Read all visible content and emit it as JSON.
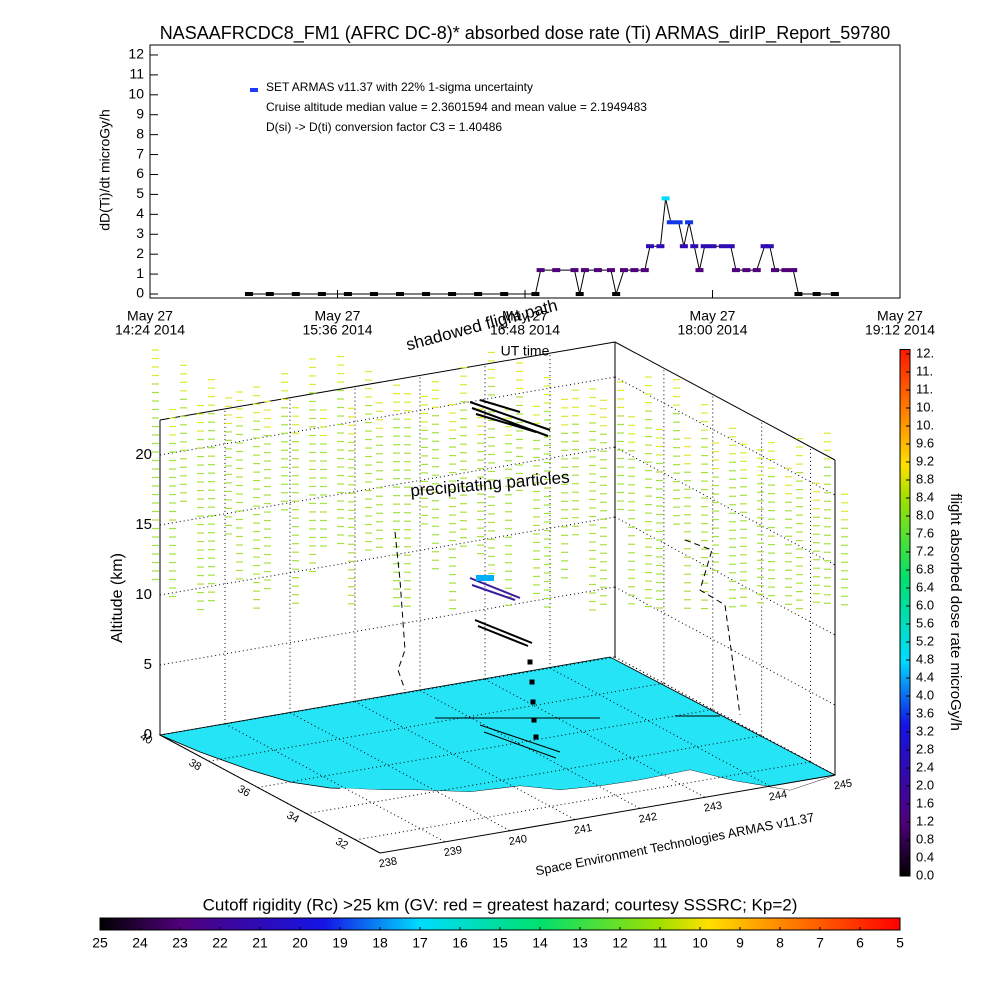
{
  "chart_data": [
    {
      "type": "line",
      "title": "NASAAFRCDC8_FM1 (AFRC DC-8)* absorbed dose rate (Ti) ARMAS_dirIP_Report_59780",
      "y_label": "dD(Ti)/dt microGy/h",
      "x_label": "UT time",
      "annotations": [
        "Cruise altitude median value = 2.3601594 and mean value = 2.1949483",
        "D(si) -> D(ti) conversion factor C3 = 1.40486"
      ],
      "x": [
        "2014-05-27 15:02",
        "2014-05-27 15:10",
        "2014-05-27 15:20",
        "2014-05-27 15:30",
        "2014-05-27 15:40",
        "2014-05-27 15:50",
        "2014-05-27 16:00",
        "2014-05-27 16:10",
        "2014-05-27 16:20",
        "2014-05-27 16:30",
        "2014-05-27 16:40",
        "2014-05-27 16:52",
        "2014-05-27 16:54",
        "2014-05-27 17:00",
        "2014-05-27 17:07",
        "2014-05-27 17:09",
        "2014-05-27 17:11",
        "2014-05-27 17:16",
        "2014-05-27 17:21",
        "2014-05-27 17:23",
        "2014-05-27 17:26",
        "2014-05-27 17:30",
        "2014-05-27 17:34",
        "2014-05-27 17:36",
        "2014-05-27 17:40",
        "2014-05-27 17:42",
        "2014-05-27 17:44",
        "2014-05-27 17:47",
        "2014-05-27 17:49",
        "2014-05-27 17:51",
        "2014-05-27 17:53",
        "2014-05-27 17:55",
        "2014-05-27 17:57",
        "2014-05-27 18:00",
        "2014-05-27 18:04",
        "2014-05-27 18:07",
        "2014-05-27 18:09",
        "2014-05-27 18:13",
        "2014-05-27 18:17",
        "2014-05-27 18:20",
        "2014-05-27 18:22",
        "2014-05-27 18:24",
        "2014-05-27 18:28",
        "2014-05-27 18:31",
        "2014-05-27 18:33",
        "2014-05-27 18:40",
        "2014-05-27 18:47"
      ],
      "series": [
        {
          "name": "SET ARMAS v11.37 with 22% 1-sigma uncertainty",
          "color": "#1a3cff",
          "values": [
            0,
            0,
            0,
            0,
            0,
            0,
            0,
            0,
            0,
            0,
            0,
            0,
            1.2,
            1.2,
            1.2,
            0,
            1.2,
            1.2,
            1.2,
            0,
            1.2,
            1.2,
            1.2,
            2.4,
            2.4,
            4.8,
            3.6,
            3.6,
            2.4,
            3.6,
            2.4,
            1.2,
            2.4,
            2.4,
            2.4,
            2.4,
            1.2,
            1.2,
            1.2,
            2.4,
            2.4,
            1.2,
            1.2,
            1.2,
            0,
            0,
            0
          ]
        }
      ],
      "xlim": [
        "2014-05-27 14:24",
        "2014-05-27 19:12"
      ],
      "xticks": [
        {
          "value": "2014-05-27 14:24",
          "label": [
            "May 27",
            "14:24 2014"
          ]
        },
        {
          "value": "2014-05-27 15:36",
          "label": [
            "May 27",
            "15:36 2014"
          ]
        },
        {
          "value": "2014-05-27 16:48",
          "label": [
            "May 27",
            "16:48 2014"
          ]
        },
        {
          "value": "2014-05-27 18:00",
          "label": [
            "May 27",
            "18:00 2014"
          ]
        },
        {
          "value": "2014-05-27 19:12",
          "label": [
            "May 27",
            "19:12 2014"
          ]
        }
      ],
      "ylim": [
        -0.2,
        12.5
      ],
      "yticks": [
        0,
        1,
        2,
        3,
        4,
        5,
        6,
        7,
        8,
        9,
        10,
        11,
        12
      ]
    },
    {
      "type": "surface3d",
      "z_label": "Altitude (km)",
      "annotations": [
        "precipitating particles",
        "shadowed flight path",
        "Space Environment Technologies ARMAS v11.37"
      ],
      "xlim": [
        238,
        245
      ],
      "xticks": [
        238,
        239,
        240,
        241,
        242,
        243,
        244,
        245
      ],
      "ylim": [
        31,
        40
      ],
      "yticks": [
        32,
        34,
        36,
        38,
        40
      ],
      "zlim": [
        0,
        22.5
      ],
      "zticks": [
        0,
        5,
        10,
        15,
        20
      ],
      "grid": true
    },
    {
      "type": "colorbar",
      "orientation": "vertical",
      "label": "flight absorbed dose rate microGy/h",
      "ylim": [
        0,
        11.7
      ],
      "yticks": [
        {
          "value": 0,
          "label": "0.0"
        },
        0.4,
        0.8,
        1.2,
        1.6,
        {
          "value": 2,
          "label": "2.0"
        },
        2.4,
        2.8,
        3.2,
        3.6,
        {
          "value": 4,
          "label": "4.0"
        },
        4.4,
        4.8,
        5.2,
        5.6,
        {
          "value": 6,
          "label": "6.0"
        },
        6.4,
        6.8,
        7.2,
        7.6,
        {
          "value": 8,
          "label": "8.0"
        },
        8.4,
        8.8,
        9.2,
        9.6,
        {
          "value": 10,
          "label": "10."
        },
        {
          "value": 10.4,
          "label": "10."
        },
        {
          "value": 10.8,
          "label": "11."
        },
        {
          "value": 11.2,
          "label": "11."
        },
        {
          "value": 11.6,
          "label": "12."
        }
      ]
    },
    {
      "type": "colorbar",
      "orientation": "horizontal",
      "title": "Cutoff rigidity (Rc) >25 km (GV: red = greatest hazard; courtesy SSSRC; Kp=2)",
      "xlim": [
        25,
        5
      ],
      "xticks": [
        25,
        24,
        23,
        22,
        21,
        20,
        19,
        18,
        17,
        16,
        15,
        14,
        13,
        12,
        11,
        10,
        9,
        8,
        7,
        6,
        5
      ]
    }
  ]
}
